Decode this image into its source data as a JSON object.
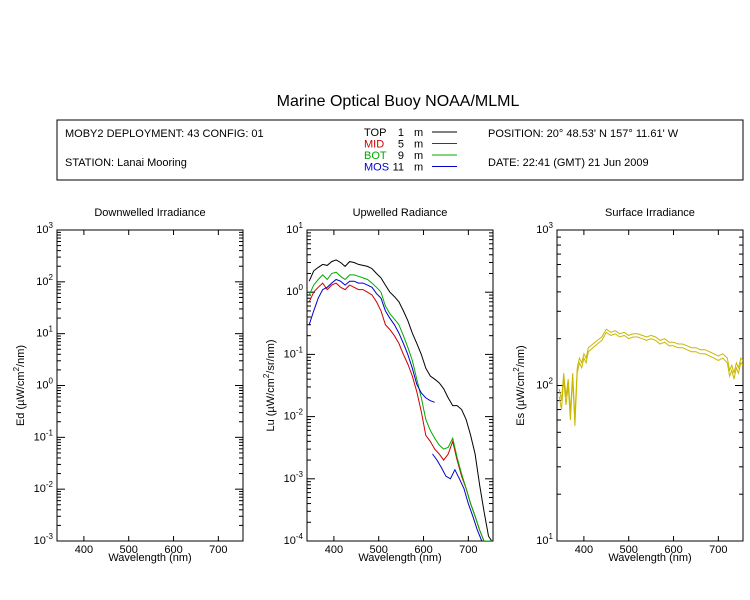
{
  "title": "Marine Optical Buoy NOAA/MLML",
  "info": {
    "deployment": "MOBY2 DEPLOYMENT: 43 CONFIG: 01",
    "station": "STATION: Lanai Mooring",
    "position": "POSITION: 20° 48.53' N   157° 11.61' W",
    "date": "DATE: 22:41 (GMT) 21 Jun 2009",
    "legend": [
      {
        "label": "TOP",
        "depth": "1",
        "unit": "m",
        "color": "#000000"
      },
      {
        "label": "MID",
        "depth": "5",
        "unit": "m",
        "color": "#cc0000"
      },
      {
        "label": "BOT",
        "depth": "9",
        "unit": "m",
        "color": "#00aa00"
      },
      {
        "label": "MOS",
        "depth": "11",
        "unit": "m",
        "color": "#0000cc"
      }
    ]
  },
  "chart_data": [
    {
      "type": "line",
      "title": "Downwelled Irradiance",
      "xlabel": "Wavelength (nm)",
      "ylabel_base": "Ed  (µW/cm",
      "ylabel_tail": "/nm)",
      "ylabel_sup": "2",
      "xlim": [
        340,
        755
      ],
      "ylim": [
        0.001,
        1000
      ],
      "yscale": "log",
      "x_ticks": [
        400,
        500,
        600,
        700
      ],
      "x_tick_labels": [
        "400",
        "500",
        "600",
        "700"
      ],
      "y_tick_bases": [
        "10",
        "10",
        "10",
        "10",
        "10",
        "10",
        "10"
      ],
      "y_tick_exps": [
        "-3",
        "-2",
        "-1",
        "0",
        "1",
        "2",
        "3"
      ],
      "series": []
    },
    {
      "type": "line",
      "title": "Upwelled Radiance",
      "xlabel": "Wavelength (nm)",
      "ylabel_base": "Lu  (µW/cm",
      "ylabel_tail": "/sr/nm)",
      "ylabel_sup": "2",
      "xlim": [
        340,
        755
      ],
      "ylim": [
        0.0001,
        10
      ],
      "yscale": "log",
      "x_ticks": [
        400,
        500,
        600,
        700
      ],
      "x_tick_labels": [
        "400",
        "500",
        "600",
        "700"
      ],
      "y_tick_bases": [
        "10",
        "10",
        "10",
        "10",
        "10",
        "10"
      ],
      "y_tick_exps": [
        "-4",
        "-3",
        "-2",
        "-1",
        "0",
        "1"
      ],
      "series": [
        {
          "color": "#000000",
          "x": [
            345,
            355,
            365,
            375,
            385,
            395,
            405,
            415,
            425,
            435,
            445,
            455,
            465,
            475,
            485,
            495,
            505,
            515,
            525,
            535,
            545,
            555,
            565,
            575,
            585,
            595,
            605,
            615,
            625,
            635,
            645,
            655,
            665,
            675,
            685,
            695,
            705,
            715,
            725,
            735,
            745,
            752
          ],
          "y": [
            1.5,
            2.2,
            2.5,
            2.8,
            2.7,
            3.1,
            3.3,
            3.0,
            2.6,
            3.1,
            3.0,
            2.8,
            2.7,
            2.6,
            2.4,
            2.0,
            1.7,
            1.3,
            1.0,
            0.85,
            0.7,
            0.5,
            0.35,
            0.22,
            0.15,
            0.1,
            0.06,
            0.045,
            0.04,
            0.035,
            0.028,
            0.02,
            0.015,
            0.015,
            0.013,
            0.009,
            0.005,
            0.0025,
            0.0008,
            0.0003,
            0.00012,
            0.0001
          ]
        },
        {
          "color": "#cc0000",
          "x": [
            345,
            355,
            365,
            375,
            385,
            395,
            405,
            415,
            425,
            435,
            445,
            455,
            465,
            475,
            485,
            495,
            505,
            515,
            525,
            535,
            545,
            555,
            565,
            575,
            585,
            595,
            605,
            615,
            625,
            635,
            645,
            655,
            665,
            675,
            685,
            695,
            705,
            715,
            725,
            735,
            745,
            752
          ],
          "y": [
            0.7,
            1.0,
            1.2,
            1.4,
            1.1,
            1.3,
            1.4,
            1.2,
            1.1,
            1.3,
            1.2,
            1.1,
            1.1,
            1.0,
            0.9,
            0.7,
            0.5,
            0.3,
            0.25,
            0.2,
            0.15,
            0.1,
            0.07,
            0.045,
            0.025,
            0.012,
            0.005,
            0.004,
            0.003,
            0.0025,
            0.002,
            0.0025,
            0.004,
            0.002,
            0.0011,
            0.0007,
            0.0004,
            0.00025,
            0.00015,
            0.0001,
            0.0001,
            0.0001
          ]
        },
        {
          "color": "#00aa00",
          "x": [
            345,
            355,
            365,
            375,
            385,
            395,
            405,
            415,
            425,
            435,
            445,
            455,
            465,
            475,
            485,
            495,
            505,
            515,
            525,
            535,
            545,
            555,
            565,
            575,
            585,
            595,
            605,
            615,
            625,
            635,
            645,
            655,
            665,
            675,
            685,
            695,
            705,
            715,
            725,
            735,
            745,
            752
          ],
          "y": [
            0.9,
            1.3,
            1.6,
            1.9,
            1.6,
            2.0,
            2.1,
            1.8,
            1.6,
            1.9,
            1.9,
            1.8,
            1.7,
            1.6,
            1.4,
            1.2,
            1.0,
            0.6,
            0.45,
            0.37,
            0.3,
            0.2,
            0.13,
            0.08,
            0.04,
            0.02,
            0.009,
            0.006,
            0.0045,
            0.0035,
            0.003,
            0.0032,
            0.0045,
            0.0022,
            0.0012,
            0.0007,
            0.0004,
            0.00025,
            0.00015,
            0.0001,
            0.0001,
            0.0001
          ]
        },
        {
          "color": "#0000cc",
          "x": [
            345,
            355,
            365,
            375,
            385,
            395,
            405,
            415,
            425,
            435,
            445,
            455,
            465,
            475,
            485,
            495,
            505,
            515,
            525,
            535,
            545,
            555,
            565,
            575,
            585,
            595,
            605,
            615,
            625
          ],
          "y": [
            0.3,
            0.5,
            0.8,
            1.1,
            1.2,
            1.4,
            1.6,
            1.5,
            1.3,
            1.5,
            1.5,
            1.4,
            1.4,
            1.3,
            1.2,
            0.95,
            0.8,
            0.5,
            0.38,
            0.3,
            0.22,
            0.15,
            0.1,
            0.06,
            0.033,
            0.024,
            0.02,
            0.018,
            0.017
          ]
        },
        {
          "color": "#0000cc",
          "x": [
            620,
            630,
            640,
            650,
            660,
            670,
            680,
            690,
            700,
            710,
            720,
            730
          ],
          "y": [
            0.0025,
            0.002,
            0.0015,
            0.0011,
            0.001,
            0.0014,
            0.001,
            0.0007,
            0.0004,
            0.00025,
            0.00015,
            0.0001
          ]
        }
      ]
    },
    {
      "type": "line",
      "title": "Surface Irradiance",
      "xlabel": "Wavelength (nm)",
      "ylabel_base": "Es  (µW/cm",
      "ylabel_tail": "/nm)",
      "ylabel_sup": "2",
      "xlim": [
        340,
        755
      ],
      "ylim": [
        10,
        1000
      ],
      "yscale": "log",
      "x_ticks": [
        400,
        500,
        600,
        700
      ],
      "x_tick_labels": [
        "400",
        "500",
        "600",
        "700"
      ],
      "y_tick_bases": [
        "10",
        "10",
        "10"
      ],
      "y_tick_exps": [
        "1",
        "2",
        "3"
      ],
      "series": [
        {
          "color": "#c8b800",
          "x": [
            345,
            350,
            355,
            360,
            365,
            370,
            375,
            380,
            385,
            390,
            395,
            400,
            405,
            410,
            420,
            430,
            440,
            450,
            460,
            470,
            480,
            490,
            500,
            510,
            520,
            530,
            540,
            550,
            560,
            570,
            580,
            590,
            600,
            610,
            620,
            630,
            640,
            650,
            660,
            670,
            680,
            690,
            700,
            710,
            720,
            725,
            730,
            735,
            740,
            745,
            750,
            755
          ],
          "y": [
            85,
            70,
            110,
            75,
            100,
            60,
            110,
            55,
            120,
            140,
            130,
            150,
            140,
            165,
            175,
            185,
            195,
            220,
            210,
            215,
            205,
            210,
            200,
            205,
            205,
            200,
            195,
            200,
            195,
            185,
            190,
            180,
            180,
            175,
            175,
            170,
            165,
            165,
            160,
            160,
            155,
            150,
            145,
            150,
            140,
            115,
            125,
            110,
            130,
            120,
            140,
            135
          ]
        },
        {
          "color": "#c8b800",
          "x": [
            345,
            350,
            355,
            360,
            365,
            370,
            375,
            380,
            385,
            390,
            395,
            400,
            405,
            410,
            420,
            430,
            440,
            450,
            460,
            470,
            480,
            490,
            500,
            510,
            520,
            530,
            540,
            550,
            560,
            570,
            580,
            590,
            600,
            610,
            620,
            630,
            640,
            650,
            660,
            670,
            680,
            690,
            700,
            710,
            720,
            725,
            730,
            735,
            740,
            745,
            750,
            755
          ],
          "y": [
            95,
            80,
            120,
            85,
            110,
            68,
            120,
            62,
            130,
            150,
            140,
            160,
            150,
            175,
            185,
            195,
            205,
            230,
            220,
            225,
            215,
            220,
            210,
            215,
            215,
            210,
            205,
            210,
            205,
            195,
            200,
            190,
            190,
            185,
            185,
            180,
            175,
            175,
            170,
            170,
            165,
            160,
            155,
            160,
            150,
            125,
            135,
            120,
            140,
            130,
            150,
            145
          ]
        }
      ]
    }
  ]
}
